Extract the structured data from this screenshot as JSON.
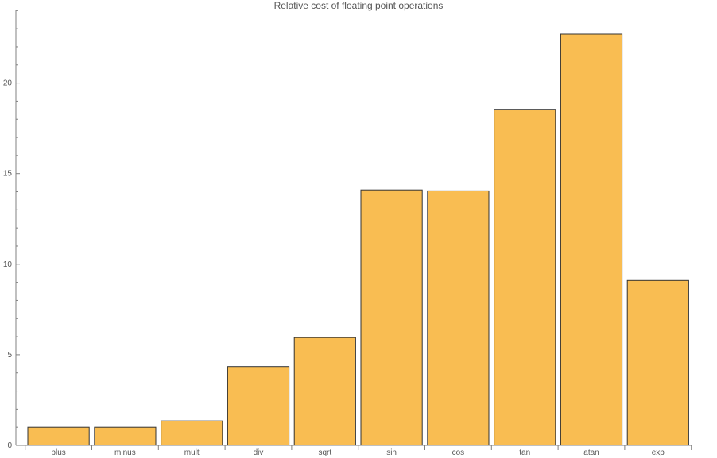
{
  "chart_data": {
    "type": "bar",
    "title": "Relative cost of floating point operations",
    "xlabel": "",
    "ylabel": "",
    "categories": [
      "plus",
      "minus",
      "mult",
      "div",
      "sqrt",
      "sin",
      "cos",
      "tan",
      "atan",
      "exp"
    ],
    "values": [
      1.0,
      1.0,
      1.35,
      4.35,
      5.95,
      14.1,
      14.05,
      18.55,
      22.7,
      9.1
    ],
    "ylim": [
      0,
      24
    ],
    "yticks": [
      0,
      5,
      10,
      15,
      20
    ],
    "y_minor_step": 1,
    "grid": false,
    "legend": "none",
    "colors": {
      "bar_fill": "#f9bd52",
      "bar_edge": "#333333",
      "axis": "#808080",
      "text": "#555555"
    }
  }
}
